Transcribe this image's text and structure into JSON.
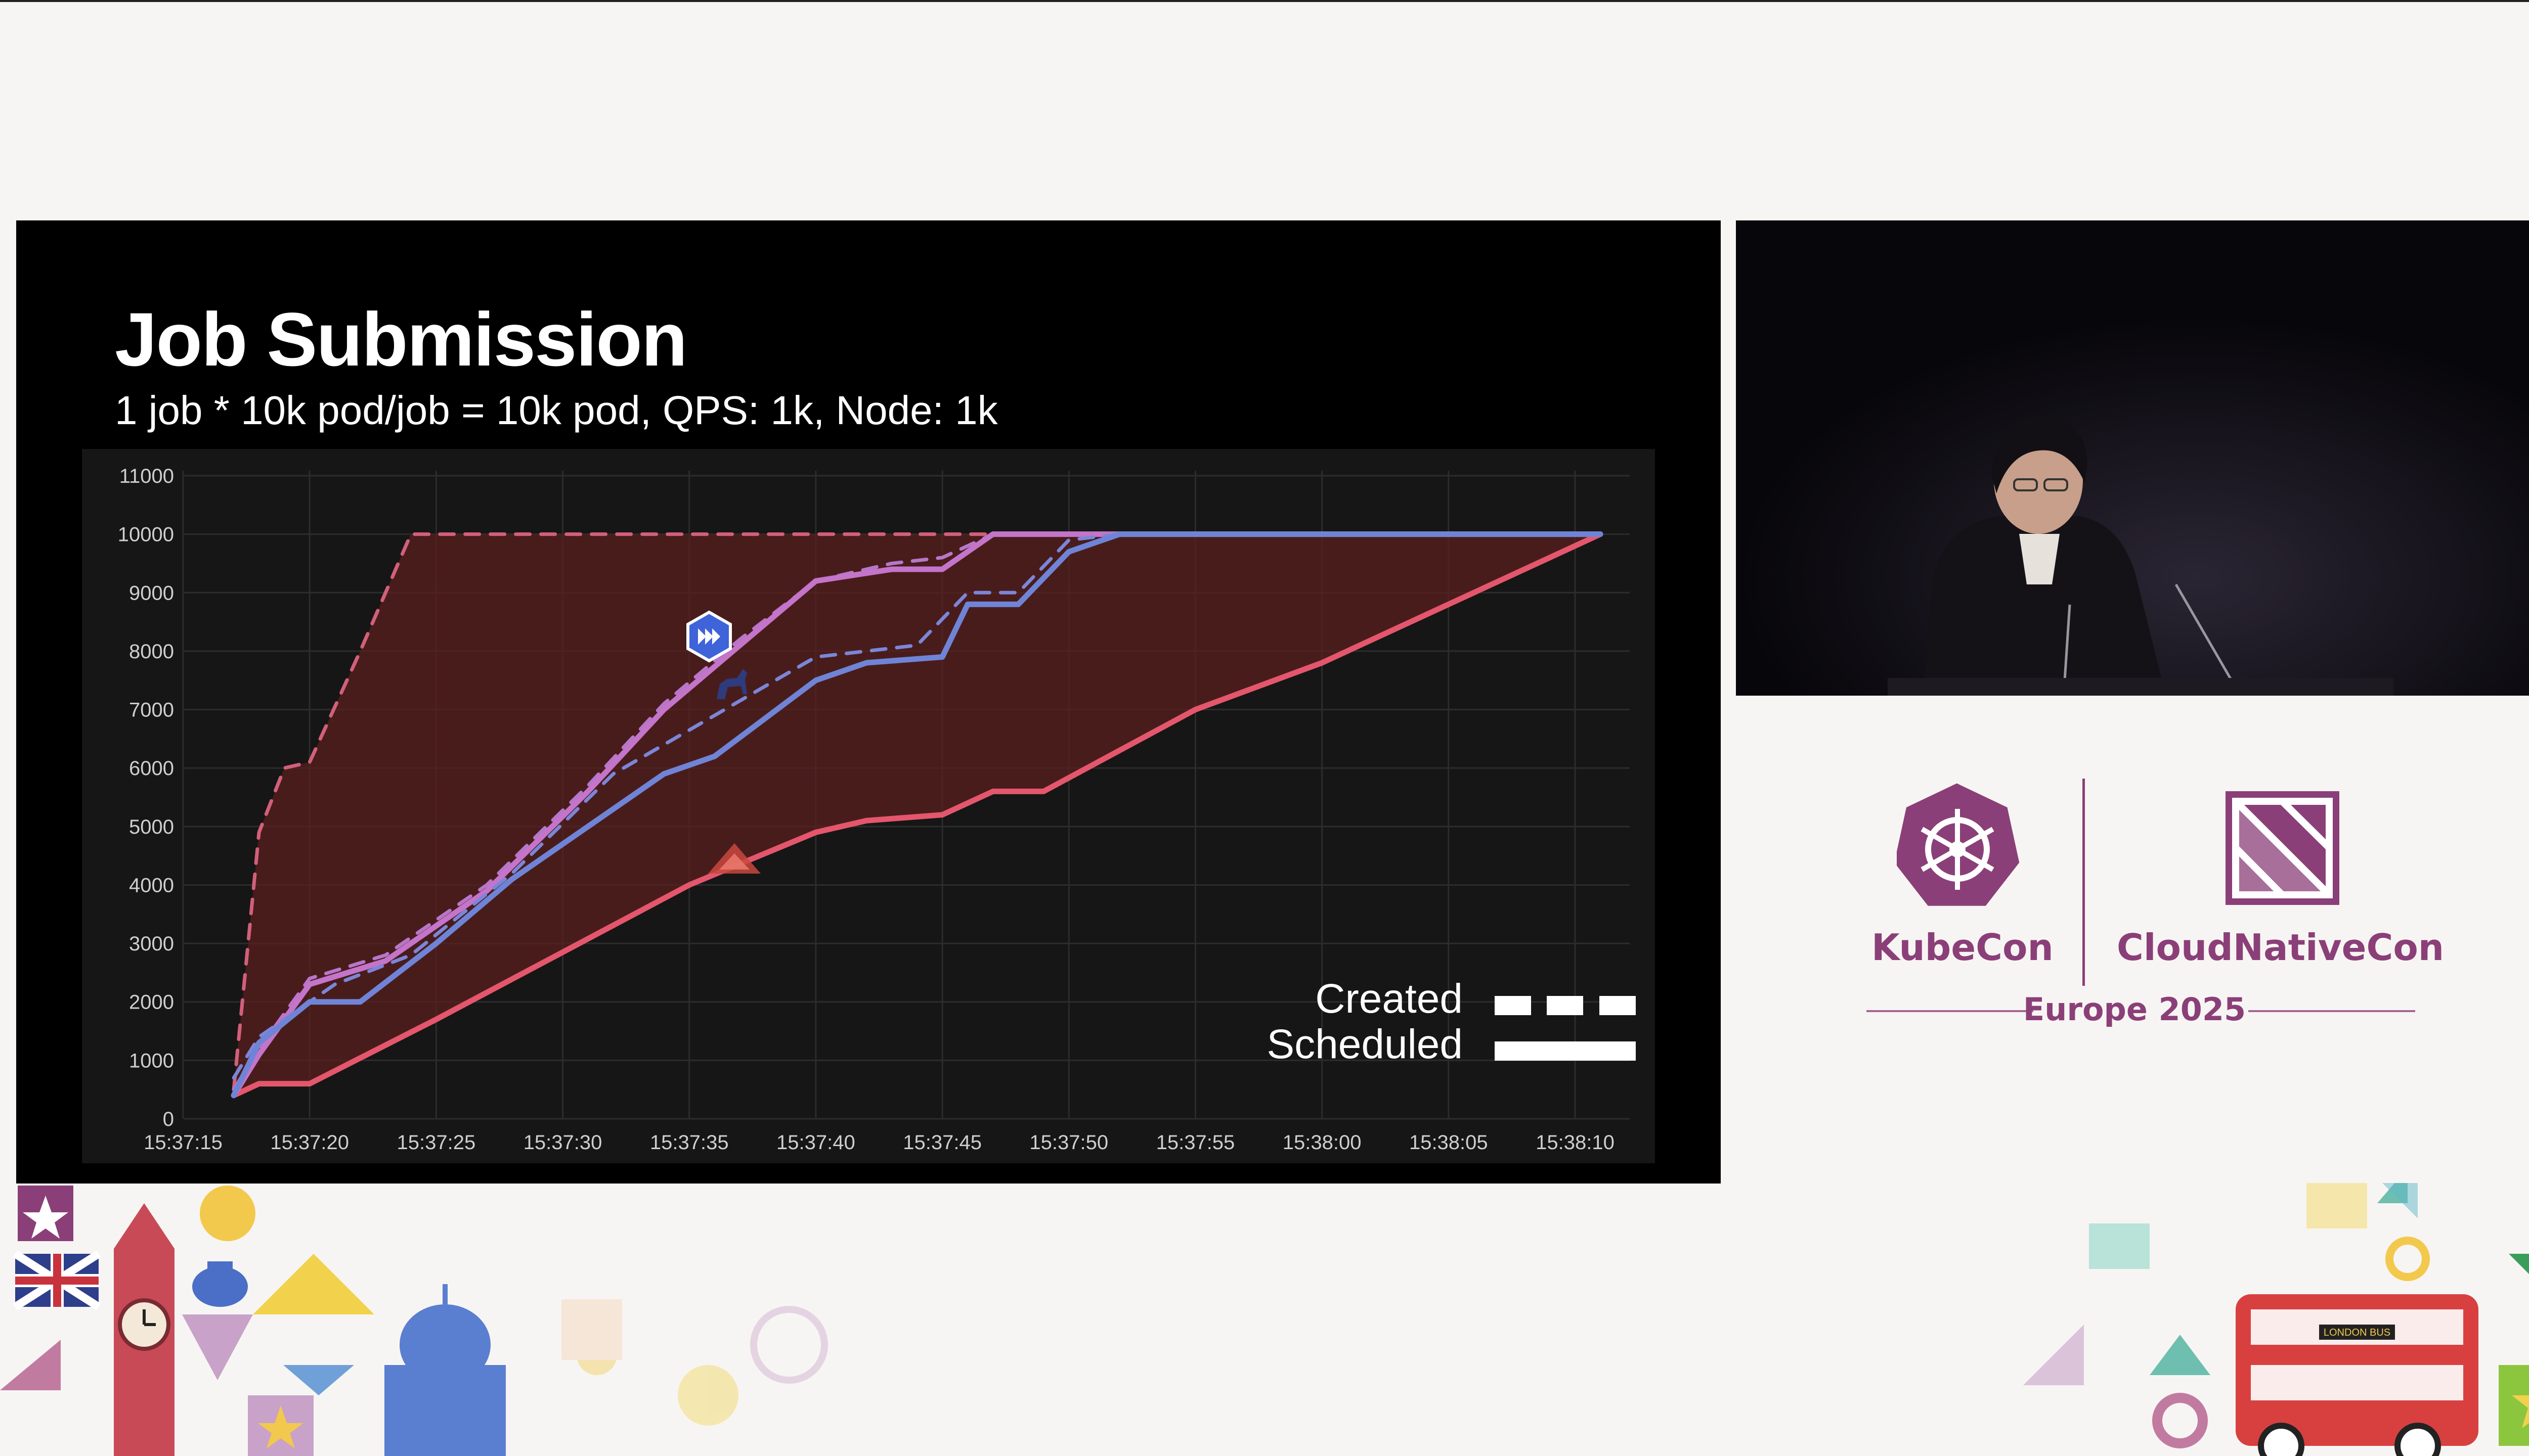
{
  "slide": {
    "title": "Job Submission",
    "subtitle": "1 job * 10k pod/job = 10k pod, QPS: 1k, Node: 1k"
  },
  "chart_data": {
    "type": "line",
    "title": "",
    "xlabel": "",
    "ylabel": "",
    "ylim": [
      0,
      11000
    ],
    "yticks": [
      "0",
      "1000",
      "2000",
      "3000",
      "4000",
      "5000",
      "6000",
      "7000",
      "8000",
      "9000",
      "10000",
      "11000"
    ],
    "xticks": [
      "15:37:15",
      "15:37:20",
      "15:37:25",
      "15:37:30",
      "15:37:35",
      "15:37:40",
      "15:37:45",
      "15:37:50",
      "15:37:55",
      "15:38:00",
      "15:38:05",
      "15:38:10"
    ],
    "grid": true,
    "legend_position": "bottom-right",
    "legend": [
      {
        "label": "Created",
        "style": "dashed"
      },
      {
        "label": "Scheduled",
        "style": "solid"
      }
    ],
    "series": [
      {
        "style": "dashed",
        "color": "#d2607a",
        "points": [
          [
            "15:37:17",
            500
          ],
          [
            "15:37:18",
            4900
          ],
          [
            "15:37:19",
            6000
          ],
          [
            "15:37:20",
            6100
          ],
          [
            "15:37:22",
            8000
          ],
          [
            "15:37:24",
            10000
          ],
          [
            "15:38:11",
            10000
          ]
        ]
      },
      {
        "style": "solid",
        "color": "#e4566c",
        "points": [
          [
            "15:37:17",
            400
          ],
          [
            "15:37:18",
            600
          ],
          [
            "15:37:20",
            600
          ],
          [
            "15:37:25",
            1700
          ],
          [
            "15:37:35",
            4000
          ],
          [
            "15:37:40",
            4900
          ],
          [
            "15:37:42",
            5100
          ],
          [
            "15:37:45",
            5200
          ],
          [
            "15:37:47",
            5600
          ],
          [
            "15:37:49",
            5600
          ],
          [
            "15:37:55",
            7000
          ],
          [
            "15:38:00",
            7800
          ],
          [
            "15:38:05",
            8800
          ],
          [
            "15:38:11",
            10000
          ]
        ]
      },
      {
        "style": "dashed",
        "color": "#b777c8",
        "points": [
          [
            "15:37:17",
            500
          ],
          [
            "15:37:18",
            1200
          ],
          [
            "15:37:20",
            2400
          ],
          [
            "15:37:23",
            2800
          ],
          [
            "15:37:27",
            4000
          ],
          [
            "15:37:31",
            5700
          ],
          [
            "15:37:34",
            7100
          ],
          [
            "15:37:37",
            8200
          ],
          [
            "15:37:40",
            9200
          ],
          [
            "15:37:43",
            9500
          ],
          [
            "15:37:45",
            9600
          ],
          [
            "15:37:47",
            10000
          ],
          [
            "15:38:11",
            10000
          ]
        ]
      },
      {
        "style": "solid",
        "color": "#c474c9",
        "points": [
          [
            "15:37:17",
            400
          ],
          [
            "15:37:18",
            1100
          ],
          [
            "15:37:20",
            2300
          ],
          [
            "15:37:23",
            2700
          ],
          [
            "15:37:27",
            3900
          ],
          [
            "15:37:31",
            5600
          ],
          [
            "15:37:34",
            7000
          ],
          [
            "15:37:37",
            8100
          ],
          [
            "15:37:40",
            9200
          ],
          [
            "15:37:43",
            9400
          ],
          [
            "15:37:45",
            9400
          ],
          [
            "15:37:47",
            10000
          ],
          [
            "15:38:11",
            10000
          ]
        ]
      },
      {
        "style": "dashed",
        "color": "#7b86d8",
        "points": [
          [
            "15:37:17",
            700
          ],
          [
            "15:37:18",
            1400
          ],
          [
            "15:37:21",
            2300
          ],
          [
            "15:37:24",
            2800
          ],
          [
            "15:37:28",
            4200
          ],
          [
            "15:37:32",
            5900
          ],
          [
            "15:37:36",
            6900
          ],
          [
            "15:37:40",
            7900
          ],
          [
            "15:37:44",
            8100
          ],
          [
            "15:37:46",
            9000
          ],
          [
            "15:37:48",
            9000
          ],
          [
            "15:37:50",
            9900
          ],
          [
            "15:37:52",
            10000
          ],
          [
            "15:38:11",
            10000
          ]
        ]
      },
      {
        "style": "solid",
        "color": "#6f84d6",
        "points": [
          [
            "15:37:17",
            400
          ],
          [
            "15:37:18",
            1300
          ],
          [
            "15:37:20",
            2000
          ],
          [
            "15:37:22",
            2000
          ],
          [
            "15:37:25",
            3000
          ],
          [
            "15:37:28",
            4100
          ],
          [
            "15:37:31",
            5000
          ],
          [
            "15:37:34",
            5900
          ],
          [
            "15:37:36",
            6200
          ],
          [
            "15:37:40",
            7500
          ],
          [
            "15:37:42",
            7800
          ],
          [
            "15:37:45",
            7900
          ],
          [
            "15:37:46",
            8800
          ],
          [
            "15:37:48",
            8800
          ],
          [
            "15:37:50",
            9700
          ],
          [
            "15:37:52",
            10000
          ],
          [
            "15:38:11",
            10000
          ]
        ]
      }
    ]
  },
  "event": {
    "kubecon": "KubeCon",
    "cloudnativecon": "CloudNativeCon",
    "edition": "Europe 2025"
  },
  "decor": {
    "bus_label": "LONDON BUS"
  },
  "colors": {
    "brand": "#8b3f78",
    "chart_bg": "#161616",
    "fill": "#5b1f1f"
  }
}
